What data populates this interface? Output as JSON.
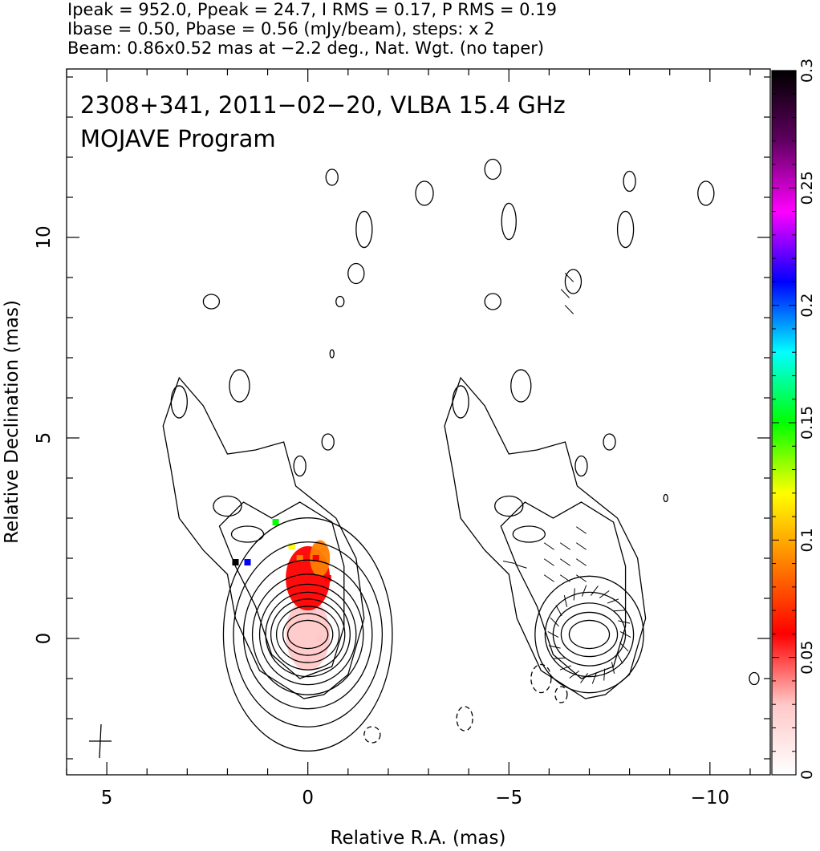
{
  "header": {
    "line1": "Ipeak = 952.0, Ppeak = 24.7, I RMS = 0.17, P RMS = 0.19",
    "line2": "Ibase = 0.50, Pbase = 0.56 (mJy/beam), steps: x 2",
    "line3": "Beam: 0.86x0.52 mas at −2.2 deg., Nat. Wgt. (no taper)"
  },
  "overlay": {
    "line1": "2308+341, 2011−02−20, VLBA 15.4 GHz",
    "line2": "MOJAVE Program"
  },
  "chart_data": {
    "type": "heatmap",
    "description_source": "VLBA 15.4 GHz total-intensity contours with fractional polarization color map",
    "xlabel": "Relative R.A. (mas)",
    "ylabel": "Relative Declination (mas)",
    "xlim": [
      6.0,
      -11.5
    ],
    "ylim": [
      -3.4,
      14.2
    ],
    "x_ticks": [
      5,
      0,
      -5,
      -10
    ],
    "y_ticks": [
      0,
      5,
      10
    ],
    "x_tick_labels": [
      "5",
      "0",
      "−5",
      "−10"
    ],
    "y_tick_labels": [
      "0",
      "5",
      "10"
    ],
    "colorbar": {
      "range": [
        0,
        0.3
      ],
      "ticks": [
        0,
        0.05,
        0.1,
        0.15,
        0.2,
        0.25,
        0.3
      ],
      "tick_labels": [
        "0",
        "0.05",
        "0.1",
        "0.15",
        "0.2",
        "0.25",
        "0.3"
      ],
      "colormap": [
        "#ffffff",
        "#ffc8c8",
        "#ff0000",
        "#ff8000",
        "#ffff00",
        "#00ff00",
        "#00ffff",
        "#0000ff",
        "#ff00ff",
        "#600060",
        "#000000"
      ]
    },
    "panels": [
      {
        "name": "left",
        "center_ra": 0.0,
        "core": [
          0.0,
          0.1
        ],
        "core_contours": [
          [
            0.5,
            0.35
          ],
          [
            0.62,
            0.52
          ],
          [
            0.78,
            0.7
          ],
          [
            0.92,
            0.88
          ],
          [
            1.05,
            1.05
          ],
          [
            1.2,
            1.25
          ],
          [
            1.38,
            1.5
          ],
          [
            1.6,
            1.85
          ],
          [
            1.85,
            2.3
          ],
          [
            2.1,
            2.9
          ]
        ]
      },
      {
        "name": "right",
        "center_ra": -7.0,
        "core": [
          -7.0,
          0.1
        ],
        "core_contours": [
          [
            0.5,
            0.35
          ],
          [
            0.7,
            0.55
          ],
          [
            0.9,
            0.78
          ],
          [
            1.1,
            1.05
          ],
          [
            1.35,
            1.45
          ]
        ]
      }
    ],
    "polarization_pixels": [
      {
        "x": -0.3,
        "y": 0.0,
        "value": 0.04
      },
      {
        "x": 0.0,
        "y": -0.5,
        "value": 0.04
      },
      {
        "x": -0.5,
        "y": 1.5,
        "value": 0.05
      },
      {
        "x": -0.2,
        "y": 2.0,
        "value": 0.06
      },
      {
        "x": 0.2,
        "y": 2.0,
        "value": 0.09
      },
      {
        "x": 0.4,
        "y": 2.3,
        "value": 0.11
      },
      {
        "x": 1.5,
        "y": 1.9,
        "value": 0.2
      },
      {
        "x": 1.8,
        "y": 1.9,
        "value": 0.3
      },
      {
        "x": 0.8,
        "y": 2.9,
        "value": 0.15
      }
    ]
  }
}
